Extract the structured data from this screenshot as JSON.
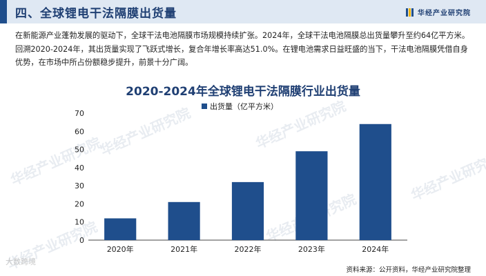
{
  "header": {
    "title": "四、全球锂电干法隔膜出货量",
    "brand": "华经产业研究院"
  },
  "paragraph": "在新能源产业蓬勃发展的驱动下，全球干法电池隔膜市场规模持续扩张。2024年，全球干法电池隔膜总出货量攀升至约64亿平方米。回溯2020-2024年，其出货量实现了飞跃式增长，复合年增长率高达51.0%。在锂电池需求日益旺盛的当下，干法电池隔膜凭借自身优势，在市场中所占份额稳步提升，前景十分广阔。",
  "watermark_text": "华经产业研究院",
  "corner_watermark": "大数跨境",
  "source": "资料来源：公开资料，华经产业研究院整理",
  "colors": {
    "bar": "#1f4e8c",
    "title": "#1f3f73",
    "header_bg": "#dfe8f3"
  },
  "chart_data": {
    "type": "bar",
    "title": "2020-2024年全球锂电干法隔膜行业出货量",
    "categories": [
      "2020年",
      "2021年",
      "2022年",
      "2023年",
      "2024年"
    ],
    "series": [
      {
        "name": "出货量（亿平方米）",
        "values": [
          12,
          21,
          32,
          49,
          64
        ]
      }
    ],
    "ylim": [
      0,
      70
    ],
    "yticks": [
      0,
      10,
      20,
      30,
      40,
      50,
      60,
      70
    ],
    "grid": false,
    "legend": "top"
  }
}
